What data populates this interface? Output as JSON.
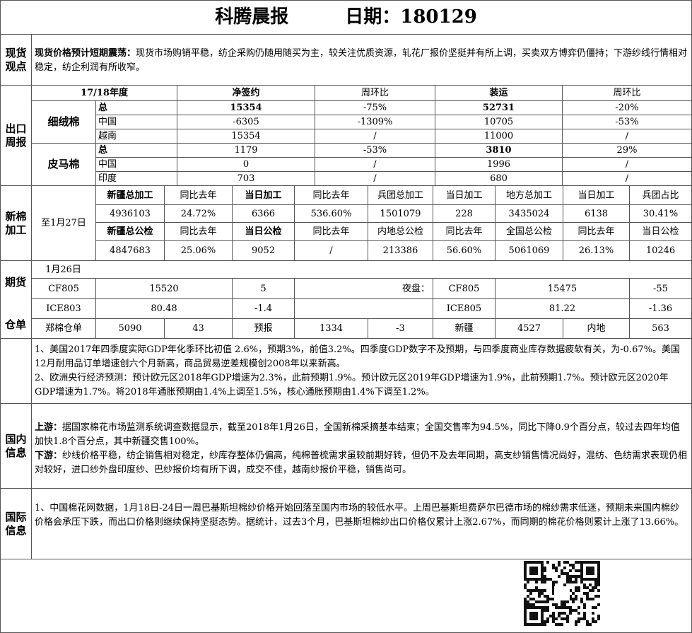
{
  "header": {
    "title": "科腾晨报",
    "date": "日期：180129"
  },
  "spot": {
    "label": "现货观点",
    "lead": "现货价格预计短期震荡：",
    "text": "现货市场购销平稳，纺企采购仍随用随买为主，较关注优质资源，轧花厂报价坚挺并有所上调，买卖双方博弈仍僵持；下游纱线行情相对稳定，纺企利润有所收窄。"
  },
  "export": {
    "label": "出口周报",
    "header": [
      "17/18年度",
      "净签约",
      "周环比",
      "装运",
      "周环比"
    ],
    "groups": [
      {
        "name": "细绒棉",
        "rows": [
          [
            "总",
            "15354",
            "-75%",
            "52731",
            "-20%"
          ],
          [
            "中国",
            "-6305",
            "-1309%",
            "10705",
            "-53%"
          ],
          [
            "越南",
            "15354",
            "/",
            "11000",
            "/"
          ]
        ]
      },
      {
        "name": "皮马棉",
        "rows": [
          [
            "总",
            "1179",
            "-53%",
            "3810",
            "29%"
          ],
          [
            "中国",
            "0",
            "/",
            "1996",
            "/"
          ],
          [
            "印度",
            "703",
            "/",
            "680",
            "/"
          ]
        ]
      }
    ]
  },
  "processing": {
    "label": "新棉加工",
    "date": "至1月27日",
    "rows": [
      [
        "新疆总加工",
        "同比去年",
        "当日加工",
        "同比去年",
        "兵团总加工",
        "当日加工",
        "地方总加工",
        "当日加工",
        "兵团占比"
      ],
      [
        "4936103",
        "24.72%",
        "6366",
        "536.60%",
        "1501079",
        "228",
        "3435024",
        "6138",
        "30.41%"
      ],
      [
        "新疆总公检",
        "同比去年",
        "当日公检",
        "同比去年",
        "内地总公检",
        "同比去年",
        "全国总公检",
        "同比去年",
        "当日公检"
      ],
      [
        "4847683",
        "25.06%",
        "9052",
        "/",
        "213386",
        "56.60%",
        "5061069",
        "26.13%",
        "10246"
      ]
    ]
  },
  "futures": {
    "label": "期货",
    "label2": "仓单",
    "date": "1月26日",
    "rows": [
      [
        "CF805",
        "15520",
        "5",
        "夜盘：",
        "CF805",
        "15475",
        "-55"
      ],
      [
        "ICE803",
        "80.48",
        "-1.4",
        "ICE805",
        "81.22",
        "-1.36"
      ],
      [
        "郑棉仓单",
        "5090",
        "43",
        "预报",
        "1334",
        "-3",
        "新疆",
        "4527",
        "内地",
        "563"
      ]
    ]
  },
  "news": {
    "paragraphs": [
      "1、美国2017年四季度实际GDP年化季环比初值 2.6%，预期3%，前值3.2%。四季度GDP数字不及预期，与四季度商业库存数据疲软有关，为-0.67%。美国12月耐用品订单增速创六个月新高，商品贸易逆差规模创2008年以来新高。",
      "2、欧洲央行经济预测：预计欧元区2018年GDP增速为2.3%，此前预期1.9%。预计欧元区2019年GDP增速为1.9%，此前预期1.7%。预计欧元区2020年GDP增速为1.7%。将2018年通胀预期由1.4%上调至1.5%，核心通胀预期由1.4%下调至1.2%。"
    ]
  },
  "domestic": {
    "label": "国内信息",
    "items": [
      {
        "lead": "上游：",
        "text": "据国家棉花市场监测系统调查数据显示，截至2018年1月26日，全国新棉采摘基本结束；全国交售率为94.5%，同比下降0.9个百分点，较过去四年均值加快1.8个百分点，其中新疆交售100%。"
      },
      {
        "lead": "下游：",
        "text": "纱线价格平稳，纺企销售相对稳定，纱库存整体仍偏高，纯棉普梳需求虽较前期好转，但仍不及去年同期，高支纱销售情况尚好，混纺、色纺需求表现仍相对较好，进口纱外盘印度纱、巴纱报价均有所下调，成交不佳，越南纱报价平稳，销售尚可。"
      }
    ]
  },
  "international": {
    "label": "国际信息",
    "text": "1、中国棉花网数据，1月18日-24日一周巴基斯坦棉纱价格开始回落至国内市场的较低水平。上周巴基斯坦费萨尔巴德市场的棉纱需求低迷，预期未来国内棉纱价格会承压下跌，而出口价格则继续保持坚挺态势。据统计，过去3个月，巴基斯坦棉纱出口价格仅累计上涨2.67%，而同期的棉花价格则累计上涨了13.66%。"
  }
}
